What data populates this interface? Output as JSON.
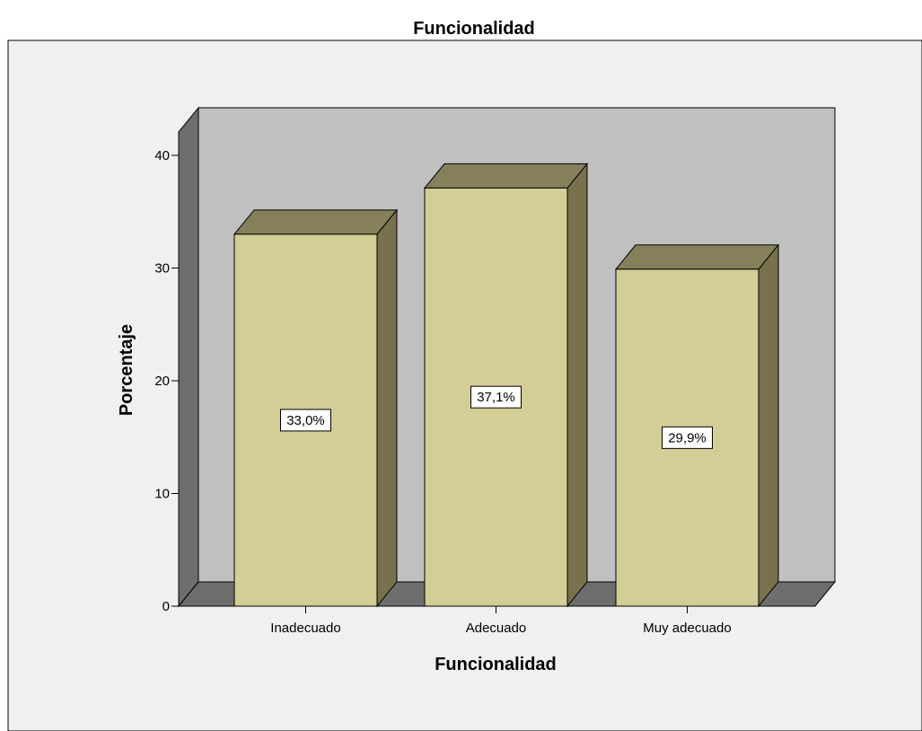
{
  "chart_data": {
    "type": "bar",
    "title": "Funcionalidad",
    "xlabel": "Funcionalidad",
    "ylabel": "Porcentaje",
    "categories": [
      "Inadecuado",
      "Adecuado",
      "Muy adecuado"
    ],
    "values": [
      33.0,
      37.1,
      29.9
    ],
    "data_labels": [
      "33,0%",
      "37,1%",
      "29,9%"
    ],
    "ylim": [
      0,
      40
    ],
    "yticks": [
      0,
      10,
      20,
      30,
      40
    ],
    "ytick_labels": [
      "0",
      "10",
      "20",
      "30",
      "40"
    ],
    "grid": false,
    "three_d": true
  },
  "colors": {
    "plot_background": "#f0f0f0",
    "back_wall": "#c0c0c0",
    "side_wall": "#6e6e6e",
    "floor": "#6e6e6e",
    "bar_front": "#d3cd96",
    "bar_top": "#857f5a",
    "bar_side": "#77714d",
    "outline": "#000000"
  }
}
